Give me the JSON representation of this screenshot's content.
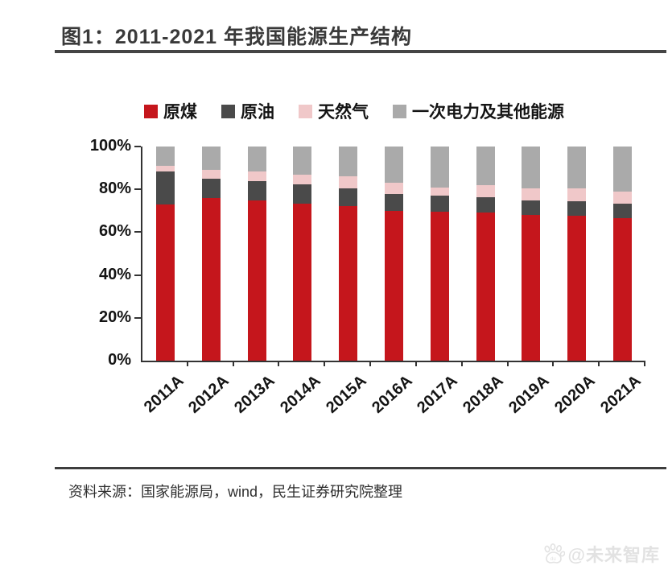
{
  "header": {
    "title": "图1：2011-2021 年我国能源生产结构"
  },
  "footer": {
    "source": "资料来源：国家能源局，wind，民生证券研究院整理"
  },
  "watermark": {
    "text": "@未来智库",
    "icon": "paw-icon"
  },
  "colors": {
    "coal": "#c5161c",
    "oil": "#4a4a4a",
    "gas": "#f0c8c9",
    "other": "#aaaaaa",
    "axis": "#333333",
    "title": "#3a3a3a"
  },
  "chart_data": {
    "type": "bar",
    "stacked": true,
    "unit": "%",
    "categories": [
      "2011A",
      "2012A",
      "2013A",
      "2014A",
      "2015A",
      "2016A",
      "2017A",
      "2018A",
      "2019A",
      "2020A",
      "2021A"
    ],
    "series": [
      {
        "name": "原煤",
        "key": "coal",
        "color": "#c5161c",
        "values": [
          73,
          76,
          75,
          73.5,
          72,
          70,
          69.5,
          69,
          68,
          67.5,
          66.5
        ]
      },
      {
        "name": "原油",
        "key": "oil",
        "color": "#4a4a4a",
        "values": [
          15.5,
          9,
          9,
          9,
          8.5,
          8,
          7.5,
          7.5,
          7,
          7,
          7
        ]
      },
      {
        "name": "天然气",
        "key": "gas",
        "color": "#f0c8c9",
        "values": [
          2.5,
          4,
          4.5,
          4.5,
          5.5,
          5,
          4,
          5.5,
          5.5,
          6,
          5.5
        ]
      },
      {
        "name": "一次电力及其他能源",
        "key": "other",
        "color": "#aaaaaa",
        "values": [
          9,
          11,
          11.5,
          13,
          14,
          17,
          19,
          18,
          19.5,
          19.5,
          21
        ]
      }
    ],
    "y_ticks": [
      0,
      20,
      40,
      60,
      80,
      100
    ],
    "y_tick_labels": [
      "0%",
      "20%",
      "40%",
      "60%",
      "80%",
      "100%"
    ],
    "ylim": [
      0,
      100
    ],
    "grid": false,
    "legend_position": "top"
  }
}
